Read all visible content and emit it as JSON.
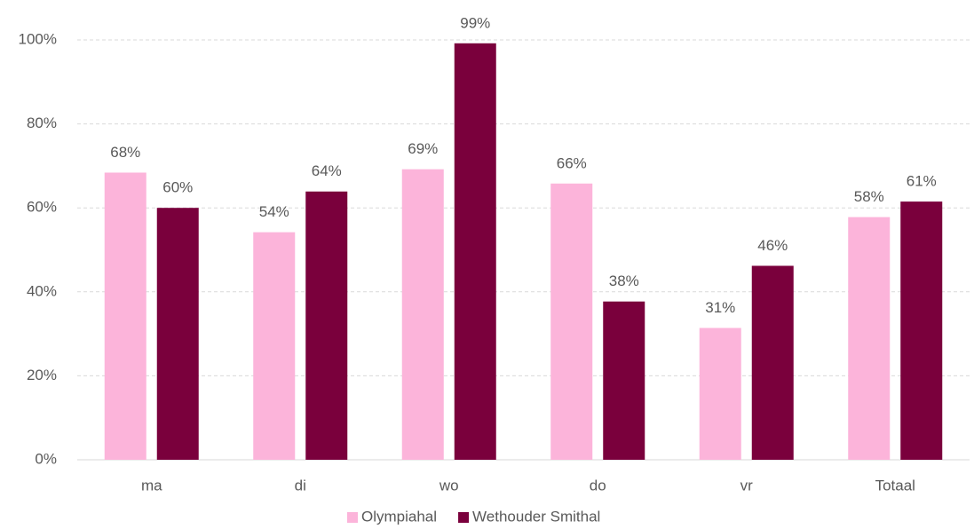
{
  "chart_data": {
    "type": "bar",
    "categories": [
      "ma",
      "di",
      "wo",
      "do",
      "vr",
      "Totaal"
    ],
    "series": [
      {
        "name": "Olympiahal",
        "color": "#fcb4da",
        "values": [
          68.4,
          54.2,
          69.2,
          65.8,
          31.4,
          57.8
        ],
        "value_labels": [
          "68%",
          "54%",
          "69%",
          "66%",
          "31%",
          "58%"
        ]
      },
      {
        "name": "Wethouder Smithal",
        "color": "#7a003c",
        "values": [
          60,
          63.9,
          99.2,
          37.7,
          46.2,
          61.5
        ],
        "value_labels": [
          "60%",
          "64%",
          "99%",
          "38%",
          "46%",
          "61%"
        ]
      }
    ],
    "ylim": [
      0,
      100
    ],
    "yticks": [
      {
        "value": 0,
        "label": "0%"
      },
      {
        "value": 20,
        "label": "20%"
      },
      {
        "value": 40,
        "label": "40%"
      },
      {
        "value": 60,
        "label": "60%"
      },
      {
        "value": 80,
        "label": "80%"
      },
      {
        "value": 100,
        "label": "100%"
      }
    ],
    "grid": true,
    "legend": "bottom"
  }
}
